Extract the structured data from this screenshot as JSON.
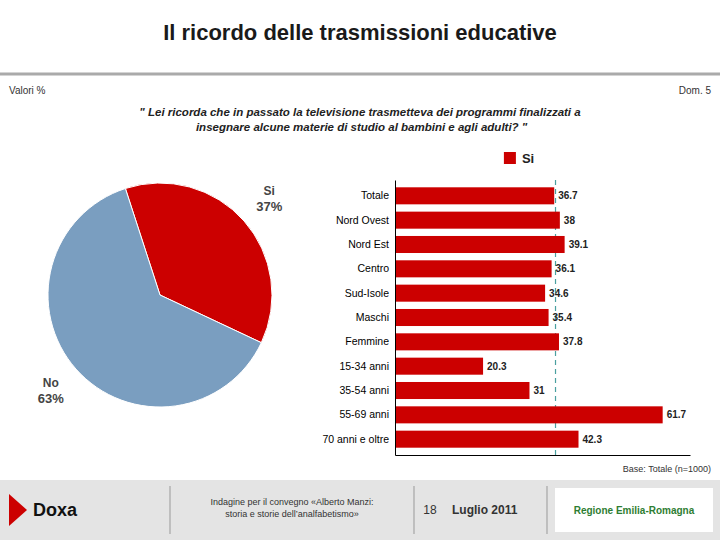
{
  "chart_data": [
    {
      "type": "pie",
      "title": "Il ricordo delle trasmissioni educative",
      "subtitle": "\" Lei ricorda che in passato la televisione trasmetteva dei programmi finalizzati a\n insegnare alcune materie di studio al bambini e agli adulti? \"",
      "categories": [
        "Si",
        "No"
      ],
      "values": [
        37,
        63
      ],
      "value_labels": [
        "37%",
        "63%"
      ],
      "data_labels": true,
      "colors": [
        "#CC0000",
        "#7A9EC0"
      ],
      "annotations": [
        "Valori %",
        "Dom. 5",
        "Doxa",
        "Indagine per il convegno «Alberto Manzi:\nstoria e storie dell’analfabetismo»",
        "18",
        "Luglio 2011",
        "Regione Emilia-Romagna"
      ]
    },
    {
      "type": "bar",
      "orientation": "horizontal",
      "categories": [
        "Totale",
        "Nord Ovest",
        "Nord Est",
        "Centro",
        "Sud-Isole",
        "Maschi",
        "Femmine",
        "15-34 anni",
        "35-54 anni",
        "55-69 anni",
        "70 anni e oltre"
      ],
      "series": [
        {
          "name": "Si",
          "color": "#CC0000",
          "values": [
            36.7,
            38,
            39.1,
            36.1,
            34.6,
            35.4,
            37.8,
            20.3,
            31,
            61.7,
            42.3
          ]
        }
      ],
      "xlim": [
        0,
        68
      ],
      "tick_labels": "y",
      "data_labels": true,
      "reference_line": {
        "x": 37.0,
        "color": "#4AA0A0",
        "line_style": "dashed"
      },
      "annotations": [
        "Base: Totale (n=1000)"
      ]
    }
  ]
}
